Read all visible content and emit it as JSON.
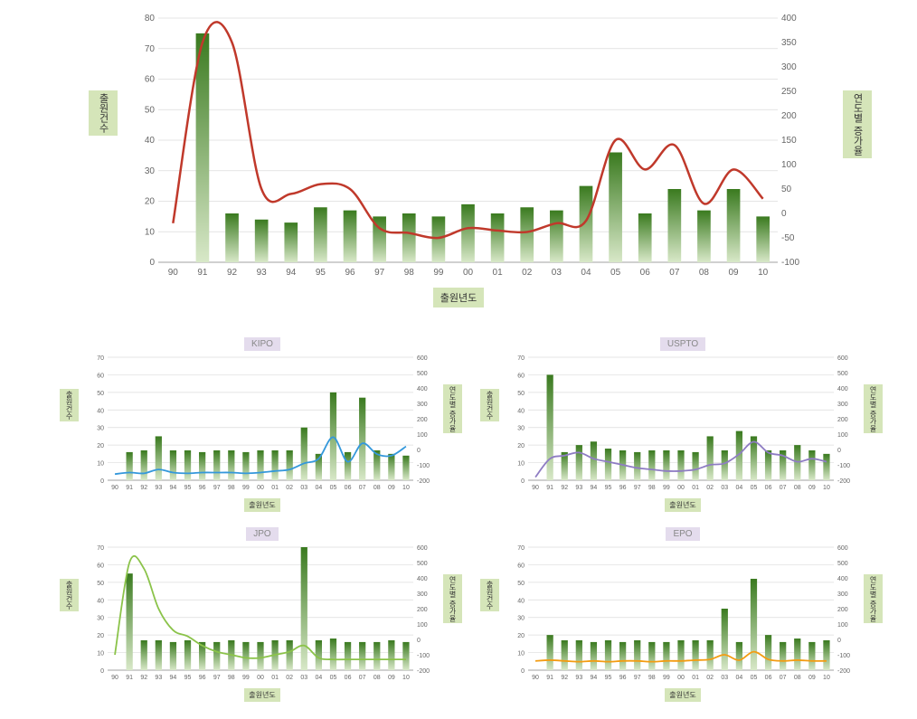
{
  "colors": {
    "bar_gradient_top": "#3a7a1f",
    "bar_gradient_bottom": "#d8e8c8",
    "grid_color": "#dcdcdc",
    "axis_line": "#a0a0a0",
    "axis_label_bg": "#d5e5b9",
    "title_bg": "#e4dced",
    "background": "#ffffff",
    "main_line": "#c0392b",
    "kipo_line": "#3498db",
    "uspto_line": "#8e7cc3",
    "jpo_line": "#8bc34a",
    "epo_line": "#f39c12"
  },
  "main_chart": {
    "type": "bar+line",
    "x_axis_label": "출원년도",
    "y_left_label": "출원건수",
    "y_right_label": "연도별 증가율",
    "categories": [
      "90",
      "91",
      "92",
      "93",
      "94",
      "95",
      "96",
      "97",
      "98",
      "99",
      "00",
      "01",
      "02",
      "03",
      "04",
      "05",
      "06",
      "07",
      "08",
      "09",
      "10"
    ],
    "bars": [
      0,
      75,
      16,
      14,
      13,
      18,
      17,
      15,
      16,
      15,
      19,
      16,
      18,
      17,
      25,
      36,
      16,
      24,
      17,
      24,
      15
    ],
    "line": [
      -20,
      350,
      350,
      50,
      40,
      60,
      50,
      -30,
      -40,
      -50,
      -30,
      -35,
      -38,
      -20,
      -15,
      150,
      90,
      140,
      20,
      90,
      30
    ],
    "y_left": {
      "min": 0,
      "max": 80,
      "step": 10
    },
    "y_right": {
      "min": -100,
      "max": 400,
      "step": 50
    },
    "bar_width_ratio": 0.45,
    "line_width": 2.5,
    "tick_fontsize": 10,
    "axis_label_fontsize": 11
  },
  "small_charts": {
    "common": {
      "x_axis_label": "출원년도",
      "y_left_label": "출원건수",
      "y_right_label": "연도별 증가율",
      "categories": [
        "90",
        "91",
        "92",
        "93",
        "94",
        "95",
        "96",
        "97",
        "98",
        "99",
        "00",
        "01",
        "02",
        "03",
        "04",
        "05",
        "06",
        "07",
        "08",
        "09",
        "10"
      ],
      "y_left": {
        "min": 0,
        "max": 70,
        "step": 10
      },
      "y_right": {
        "min": -200,
        "max": 600,
        "step": 100
      },
      "bar_width_ratio": 0.45,
      "line_width": 1.8,
      "tick_fontsize": 7,
      "axis_label_fontsize": 8
    },
    "kipo": {
      "title": "KIPO",
      "bars": [
        0,
        16,
        17,
        25,
        17,
        17,
        16,
        17,
        17,
        16,
        17,
        17,
        17,
        30,
        15,
        50,
        16,
        47,
        17,
        15,
        14
      ],
      "line": [
        -160,
        -150,
        -155,
        -130,
        -150,
        -155,
        -150,
        -150,
        -150,
        -155,
        -150,
        -140,
        -130,
        -90,
        -60,
        80,
        -80,
        40,
        -30,
        -40,
        20
      ]
    },
    "uspto": {
      "title": "USPTO",
      "bars": [
        0,
        60,
        16,
        20,
        22,
        18,
        17,
        16,
        17,
        17,
        17,
        16,
        25,
        17,
        28,
        25,
        17,
        17,
        20,
        17,
        15
      ],
      "line": [
        -180,
        -60,
        -40,
        -20,
        -60,
        -80,
        -100,
        -120,
        -130,
        -140,
        -140,
        -130,
        -100,
        -90,
        -30,
        50,
        -20,
        -40,
        -80,
        -60,
        -80
      ]
    },
    "jpo": {
      "title": "JPO",
      "bars": [
        0,
        55,
        17,
        17,
        16,
        17,
        16,
        16,
        17,
        16,
        16,
        17,
        17,
        70,
        17,
        18,
        16,
        16,
        16,
        17,
        16
      ],
      "line": [
        -100,
        500,
        460,
        200,
        60,
        20,
        -40,
        -80,
        -100,
        -120,
        -120,
        -100,
        -80,
        -40,
        -120,
        -130,
        -130,
        -130,
        -130,
        -130,
        -130
      ]
    },
    "epo": {
      "title": "EPO",
      "bars": [
        0,
        20,
        17,
        17,
        16,
        17,
        16,
        17,
        16,
        16,
        17,
        17,
        17,
        35,
        16,
        52,
        20,
        16,
        18,
        16,
        17
      ],
      "line": [
        -140,
        -135,
        -140,
        -145,
        -140,
        -145,
        -140,
        -140,
        -145,
        -140,
        -140,
        -135,
        -130,
        -100,
        -135,
        -80,
        -130,
        -140,
        -135,
        -140,
        -140
      ]
    }
  }
}
